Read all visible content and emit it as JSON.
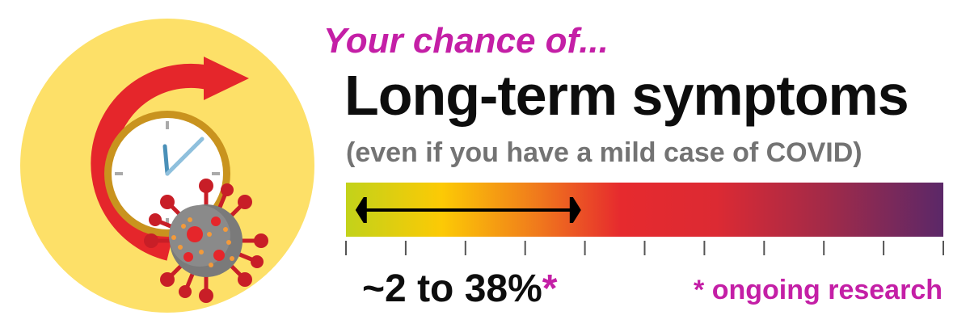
{
  "header": {
    "kicker": "Your chance of...",
    "headline": "Long-term symptoms",
    "subhead": "(even if you have a mild case of COVID)"
  },
  "risk": {
    "low_percent": 2,
    "high_percent": 38,
    "result_text": "~2 to 38%",
    "result_marker": "*",
    "scale_ticks": 11
  },
  "footnote": "* ongoing research",
  "colors": {
    "accent": "#c41fa6",
    "circle": "#fde068",
    "arrow": "#e5262b",
    "clock_rim": "#c9931e",
    "virus_body": "#7a7a7a",
    "virus_spike": "#c81e27",
    "gradient": [
      "#c2d21a",
      "#fcca05",
      "#f07a1c",
      "#e62a2e",
      "#c42a3c",
      "#8a2858",
      "#5b2868"
    ]
  },
  "icons": {
    "main": "long-covid-clock-virus-icon"
  }
}
